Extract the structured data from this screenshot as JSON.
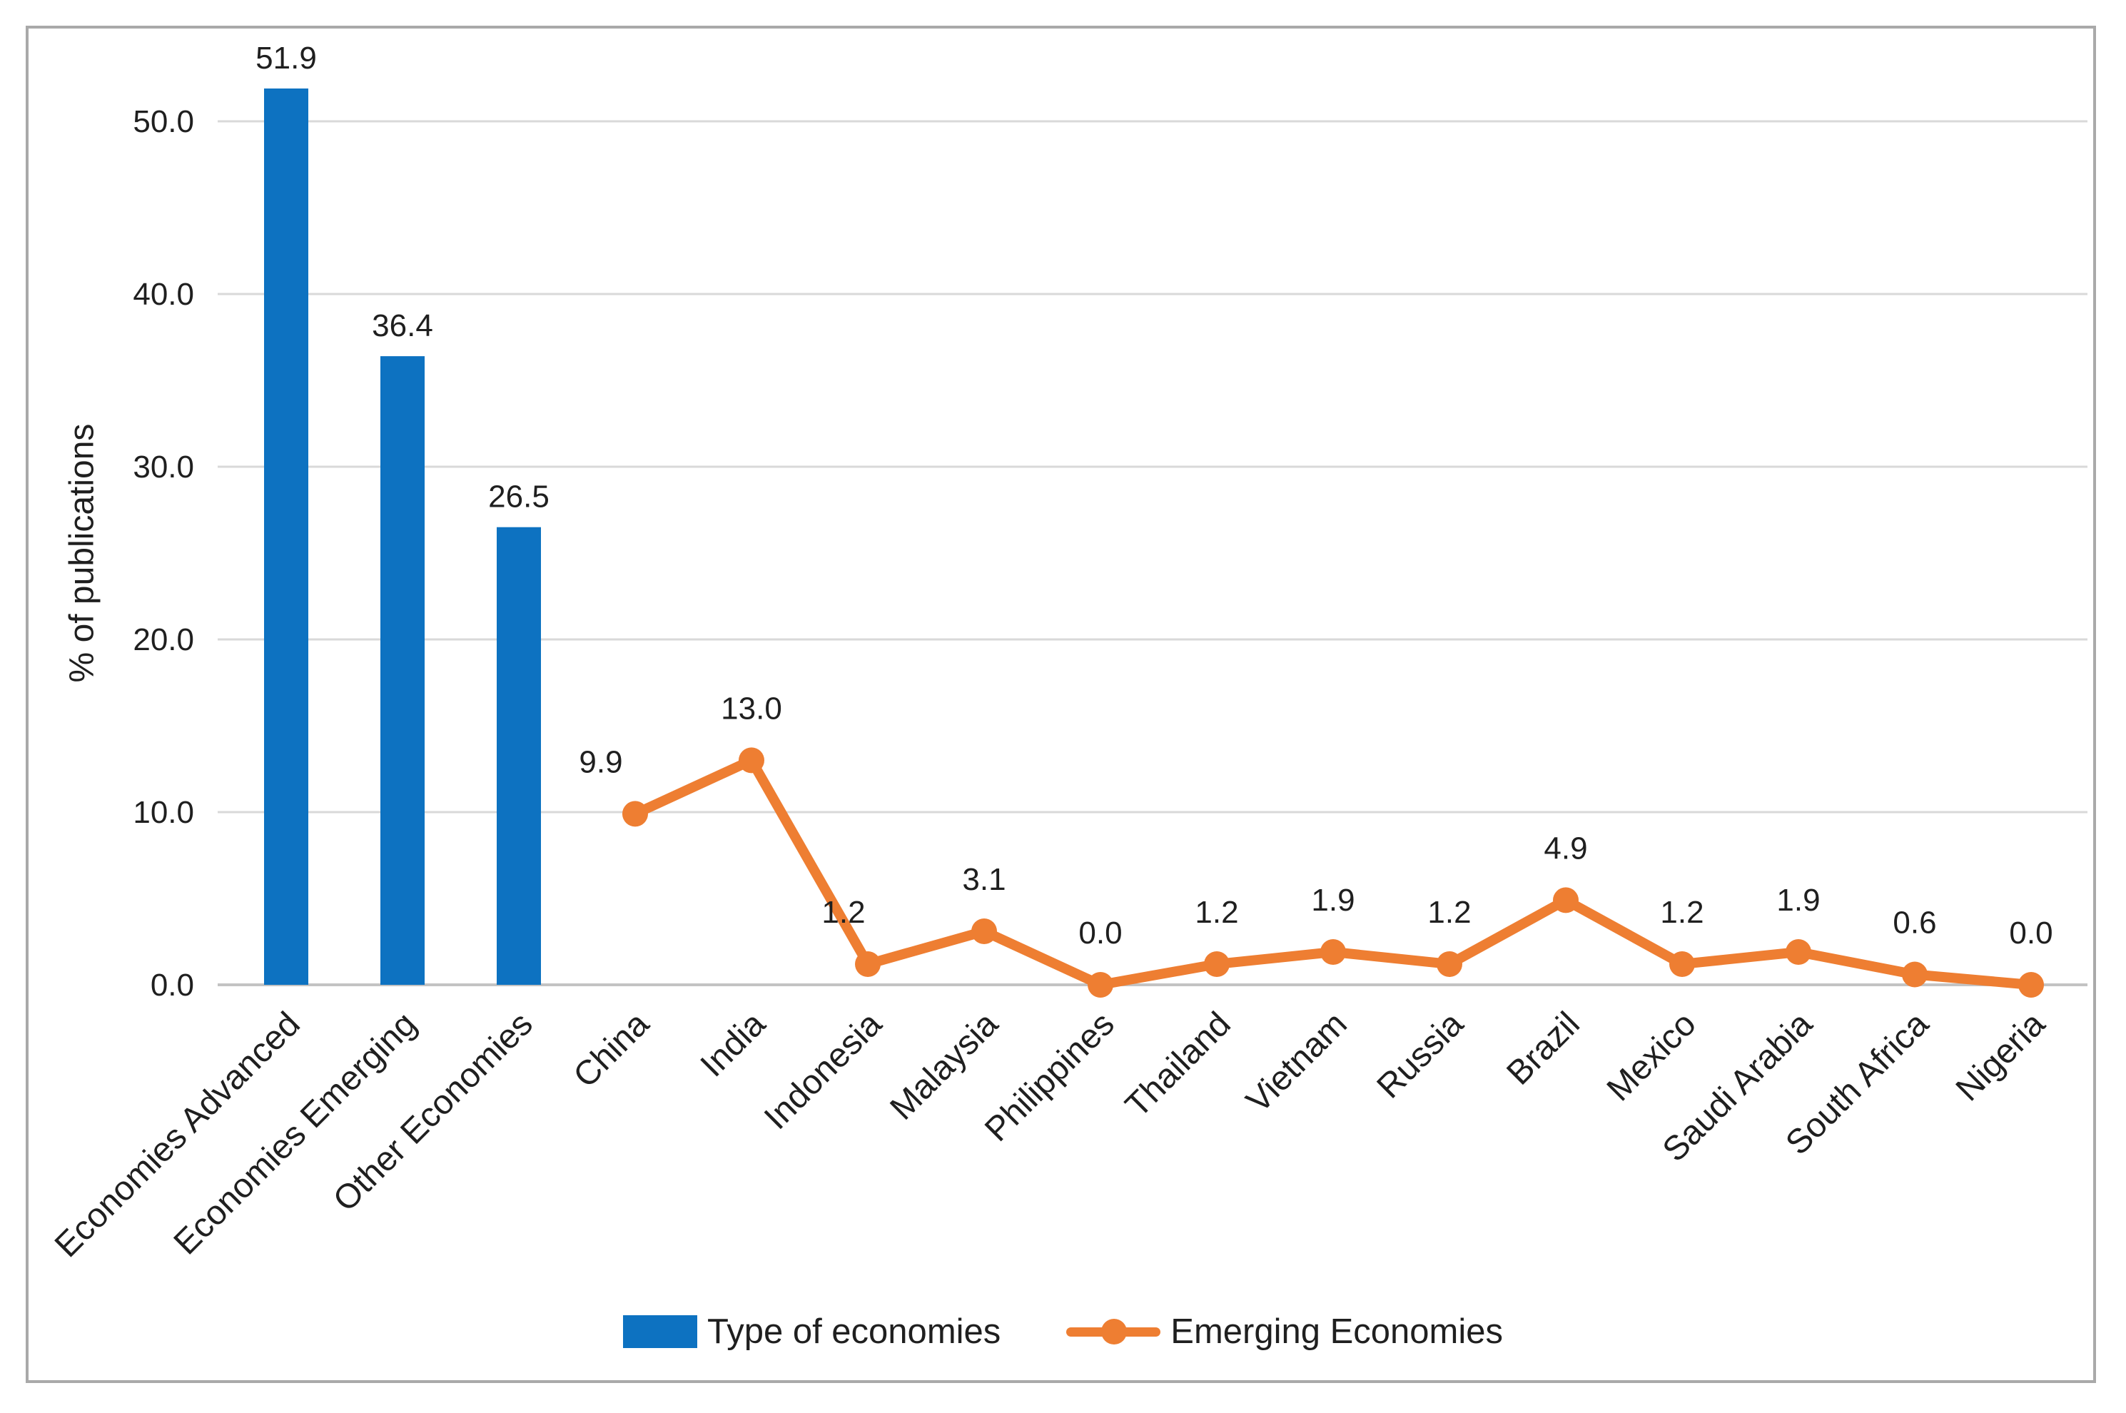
{
  "figure": {
    "ylabel": "% of publications",
    "legend": [
      {
        "label": "Type of economies",
        "marker": "bar-swatch",
        "color": "#0d72c1"
      },
      {
        "label": "Emerging Economies",
        "marker": "line-with-dot",
        "color": "#ee7e32"
      }
    ]
  },
  "chart_data": {
    "type": "combo-bar-line",
    "title": "",
    "xlabel": "",
    "ylabel": "% of publications",
    "categories": [
      "Economies Advanced",
      "Economies Emerging",
      "Other Economies",
      "China",
      "India",
      "Indonesia",
      "Malaysia",
      "Philippines",
      "Thailand",
      "Vietnam",
      "Russia",
      "Brazil",
      "Mexico",
      "Saudi Arabia",
      "South Africa",
      "Nigeria"
    ],
    "series": [
      {
        "name": "Type of economies",
        "type": "bar",
        "color": "#0d72c1",
        "values": [
          51.9,
          36.4,
          26.5,
          null,
          null,
          null,
          null,
          null,
          null,
          null,
          null,
          null,
          null,
          null,
          null,
          null
        ]
      },
      {
        "name": "Emerging Economies",
        "type": "line",
        "color": "#ee7e32",
        "values": [
          null,
          null,
          null,
          9.9,
          13.0,
          1.2,
          3.1,
          0.0,
          1.2,
          1.9,
          1.2,
          4.9,
          1.2,
          1.9,
          0.6,
          0.0
        ]
      }
    ],
    "data_labels": [
      "51.9",
      "36.4",
      "26.5",
      "9.9",
      "13.0",
      "1.2",
      "3.1",
      "0.0",
      "1.2",
      "1.9",
      "1.2",
      "4.9",
      "1.2",
      "1.9",
      "0.6",
      "0.0"
    ],
    "ylim": [
      0,
      55
    ],
    "yticks": [
      0,
      10,
      20,
      30,
      40,
      50
    ],
    "ytick_labels": [
      "0.0",
      "10.0",
      "20.0",
      "30.0",
      "40.0",
      "50.0"
    ],
    "grid": true,
    "legend_position": "bottom",
    "colors": {
      "gridline": "#d9d9d9",
      "axis_line": "#c3c3c3",
      "text": "#1f1f1f",
      "frame_border": "#a9a9a9",
      "background": "#ffffff"
    }
  }
}
